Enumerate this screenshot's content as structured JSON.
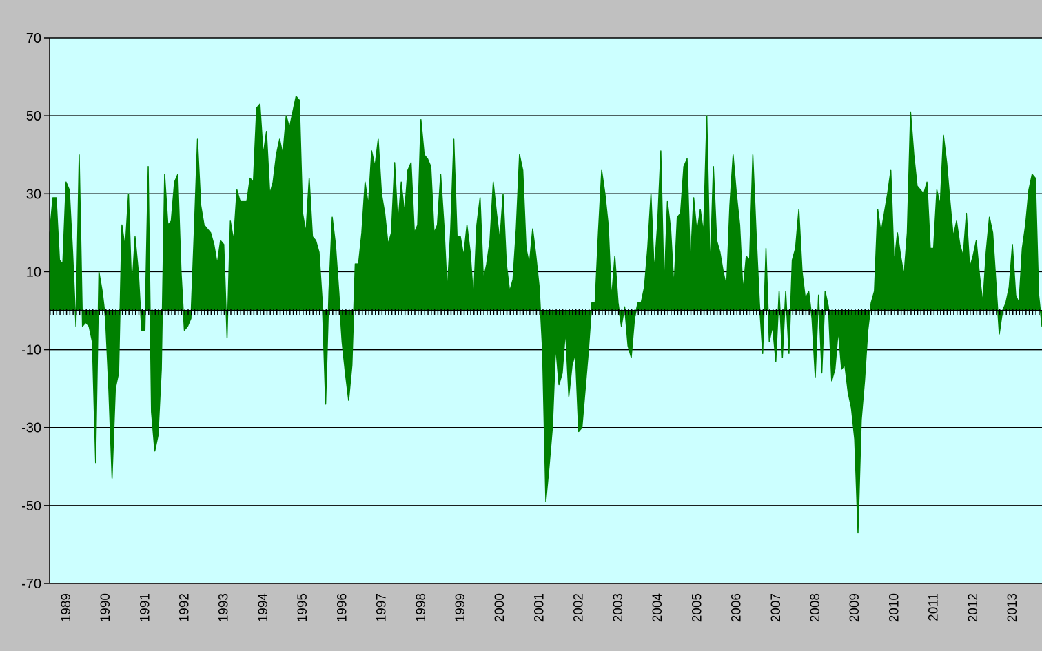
{
  "chart_data": {
    "type": "area",
    "color": "#008000",
    "background": "#ccffff",
    "grid": true,
    "ylim": [
      -70,
      70
    ],
    "yticks": [
      -70,
      -50,
      -30,
      -10,
      10,
      30,
      50,
      70
    ],
    "categories": [
      null,
      null,
      null,
      null,
      null,
      "1989",
      null,
      null,
      null,
      null,
      null,
      null,
      null,
      null,
      null,
      null,
      null,
      "1990",
      null,
      null,
      null,
      null,
      null,
      null,
      null,
      null,
      null,
      null,
      null,
      "1991",
      null,
      null,
      null,
      null,
      null,
      null,
      null,
      null,
      null,
      null,
      null,
      "1992",
      null,
      null,
      null,
      null,
      null,
      null,
      null,
      null,
      null,
      null,
      null,
      "1993",
      null,
      null,
      null,
      null,
      null,
      null,
      null,
      null,
      null,
      null,
      null,
      "1994",
      null,
      null,
      null,
      null,
      null,
      null,
      null,
      null,
      null,
      null,
      null,
      "1995",
      null,
      null,
      null,
      null,
      null,
      null,
      null,
      null,
      null,
      null,
      null,
      "1996",
      null,
      null,
      null,
      null,
      null,
      null,
      null,
      null,
      null,
      null,
      null,
      "1997",
      null,
      null,
      null,
      null,
      null,
      null,
      null,
      null,
      null,
      null,
      null,
      "1998",
      null,
      null,
      null,
      null,
      null,
      null,
      null,
      null,
      null,
      null,
      null,
      "1999",
      null,
      null,
      null,
      null,
      null,
      null,
      null,
      null,
      null,
      null,
      null,
      "2000",
      null,
      null,
      null,
      null,
      null,
      null,
      null,
      null,
      null,
      null,
      null,
      "2001",
      null,
      null,
      null,
      null,
      null,
      null,
      null,
      null,
      null,
      null,
      null,
      "2002",
      null,
      null,
      null,
      null,
      null,
      null,
      null,
      null,
      null,
      null,
      null,
      "2003",
      null,
      null,
      null,
      null,
      null,
      null,
      null,
      null,
      null,
      null,
      null,
      "2004",
      null,
      null,
      null,
      null,
      null,
      null,
      null,
      null,
      null,
      null,
      null,
      "2005",
      null,
      null,
      null,
      null,
      null,
      null,
      null,
      null,
      null,
      null,
      null,
      "2006",
      null,
      null,
      null,
      null,
      null,
      null,
      null,
      null,
      null,
      null,
      null,
      "2007",
      null,
      null,
      null,
      null,
      null,
      null,
      null,
      null,
      null,
      null,
      null,
      "2008",
      null,
      null,
      null,
      null,
      null,
      null,
      null,
      null,
      null,
      null,
      null,
      "2009",
      null,
      null,
      null,
      null,
      null,
      null,
      null,
      null,
      null,
      null,
      null,
      "2010",
      null,
      null,
      null,
      null,
      null,
      null,
      null,
      null,
      null,
      null,
      null,
      "2011",
      null,
      null,
      null,
      null,
      null,
      null,
      null,
      null,
      null,
      null,
      null,
      "2012",
      null,
      null,
      null,
      null,
      null,
      null,
      null,
      null,
      null,
      null,
      null,
      "2013",
      null,
      null,
      null,
      null,
      null,
      null,
      null,
      null,
      null
    ],
    "values": [
      20,
      29,
      29,
      13,
      12,
      33,
      31,
      15,
      -4,
      40,
      -4,
      -3,
      -4,
      -8,
      -39,
      10,
      5,
      -2,
      -20,
      -43,
      -20,
      -16,
      22,
      16,
      30,
      5,
      19,
      10,
      -5,
      -5,
      37,
      -26,
      -36,
      -32,
      -15,
      35,
      22,
      23,
      33,
      35,
      10,
      -5,
      -4,
      -2,
      20,
      44,
      27,
      22,
      21,
      20,
      17,
      12,
      18,
      17,
      -7,
      23,
      18,
      31,
      28,
      28,
      28,
      34,
      33,
      52,
      53,
      40,
      46,
      30,
      33,
      40,
      44,
      40,
      50,
      47,
      51,
      55,
      54,
      25,
      20,
      34,
      19,
      18,
      15,
      2,
      -24,
      5,
      24,
      17,
      5,
      -8,
      -16,
      -23,
      -14,
      12,
      12,
      20,
      33,
      27,
      41,
      37,
      44,
      30,
      25,
      17,
      20,
      38,
      22,
      33,
      25,
      36,
      38,
      20,
      22,
      49,
      40,
      39,
      37,
      20,
      22,
      35,
      22,
      5,
      20,
      44,
      19,
      19,
      14,
      22,
      15,
      3,
      22,
      29,
      8,
      12,
      18,
      33,
      25,
      18,
      30,
      12,
      5,
      8,
      21,
      40,
      36,
      16,
      12,
      21,
      14,
      6,
      -10,
      -49,
      -40,
      -30,
      -9,
      -19,
      -16,
      -5,
      -22,
      -14,
      -11,
      -31,
      -30,
      -20,
      -10,
      2,
      2,
      20,
      36,
      30,
      22,
      3,
      14,
      2,
      -4,
      1,
      -9,
      -12,
      -2,
      2,
      2,
      6,
      16,
      30,
      10,
      22,
      41,
      5,
      28,
      21,
      6,
      24,
      25,
      37,
      39,
      12,
      29,
      20,
      26,
      20,
      50,
      10,
      37,
      18,
      15,
      10,
      6,
      27,
      40,
      30,
      22,
      5,
      14,
      13,
      40,
      20,
      2,
      -11,
      16,
      -8,
      -4,
      -13,
      5,
      -12,
      5,
      -11,
      13,
      16,
      26,
      10,
      3,
      5,
      -2,
      -17,
      4,
      -16,
      5,
      1,
      -18,
      -15,
      -5,
      -15,
      -14,
      -21,
      -25,
      -33,
      -57,
      -28,
      -18,
      -5,
      2,
      5,
      26,
      20,
      25,
      30,
      36,
      12,
      20,
      14,
      9,
      20,
      51,
      40,
      32,
      31,
      30,
      33,
      16,
      16,
      31,
      27,
      45,
      38,
      28,
      19,
      23,
      17,
      14,
      25,
      11,
      14,
      18,
      9,
      2,
      15,
      24,
      20,
      7,
      -6,
      0,
      2,
      6,
      17,
      4,
      2,
      16,
      22,
      31,
      35,
      34,
      4,
      -4
    ]
  }
}
